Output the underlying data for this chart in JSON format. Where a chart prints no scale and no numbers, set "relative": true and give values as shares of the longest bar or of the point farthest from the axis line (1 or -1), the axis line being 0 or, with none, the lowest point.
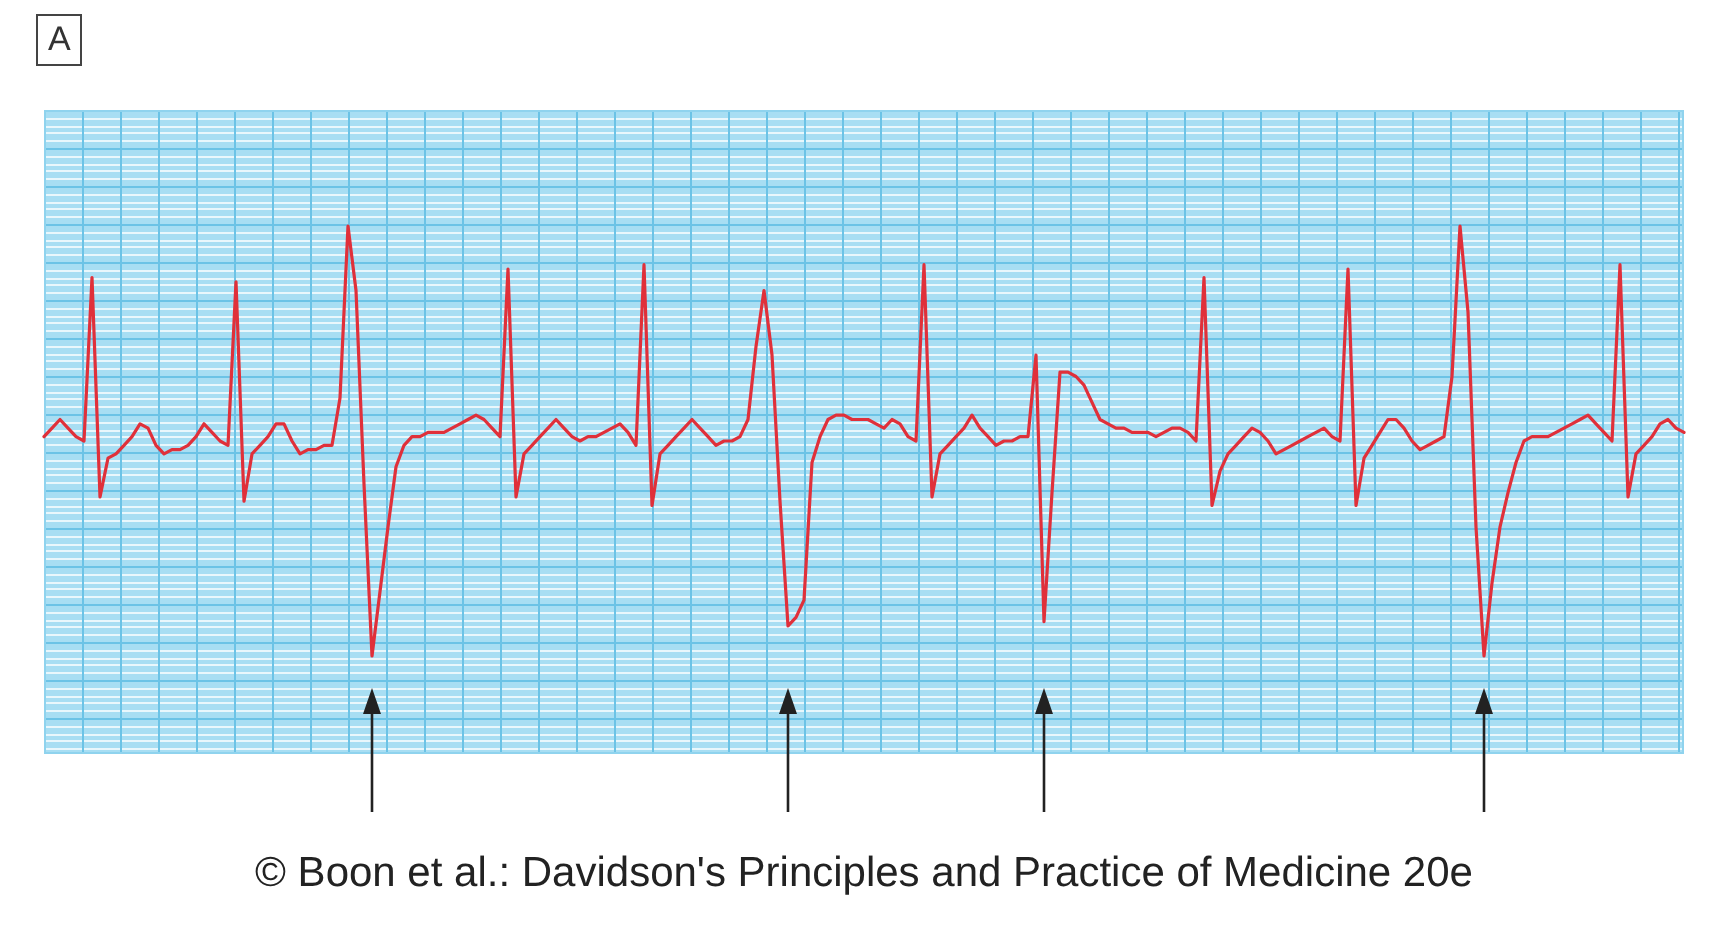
{
  "chart_data": {
    "type": "line",
    "title": "A",
    "annotations": [
      "© Boon et al.: Davidson's Principles and Practice of Medicine 20e"
    ],
    "relative": true,
    "grid": true,
    "marker": "none",
    "line_style": "solid",
    "categories": [
      null,
      null,
      null,
      null,
      null,
      null,
      null,
      null,
      null,
      null,
      null,
      null,
      null,
      null,
      null,
      null,
      null,
      null,
      null,
      null,
      null,
      null,
      null,
      null,
      null,
      null,
      null,
      null,
      null,
      null,
      null,
      null,
      null,
      null,
      null,
      null,
      null,
      null,
      null,
      null,
      null,
      null,
      null,
      null,
      null,
      null,
      null,
      null,
      null,
      null,
      null,
      null,
      null,
      null,
      null,
      null,
      null,
      null,
      null,
      null,
      null,
      null,
      null,
      null,
      null,
      null,
      null,
      null,
      null,
      null,
      null,
      null,
      null,
      null,
      null,
      null,
      null,
      null,
      null,
      null,
      null,
      null,
      null,
      null,
      null,
      null,
      null,
      null,
      null,
      null,
      null,
      null,
      null,
      null,
      null,
      null,
      null,
      null,
      null,
      null,
      null,
      null,
      null,
      null,
      null,
      null,
      null,
      null,
      null,
      null,
      null,
      null,
      null,
      null,
      null,
      null,
      null,
      null,
      null,
      null,
      null,
      null,
      null,
      null,
      null,
      null,
      null,
      null,
      null,
      null,
      null,
      null,
      null,
      null,
      null,
      null,
      null,
      null,
      null,
      null,
      null,
      null,
      null,
      null,
      null,
      null,
      null,
      null,
      null,
      null,
      null,
      null,
      null,
      null,
      null,
      null,
      null,
      null,
      null,
      null,
      null,
      null,
      null,
      null,
      null,
      null,
      null,
      null,
      null,
      null,
      null,
      null,
      null,
      null,
      null,
      null,
      null,
      null,
      null,
      null,
      null,
      null,
      null,
      null,
      null,
      null,
      null,
      null,
      null,
      null,
      null,
      null,
      null,
      null,
      null,
      null,
      null,
      null,
      null,
      null,
      null,
      null,
      null,
      null,
      null,
      null
    ],
    "series": [
      {
        "color": "#e0303a",
        "values": [
          0.51,
          0.53,
          0.55,
          0.53,
          0.51,
          0.5,
          0.88,
          0.37,
          0.46,
          0.47,
          0.49,
          0.51,
          0.54,
          0.53,
          0.49,
          0.47,
          0.48,
          0.48,
          0.49,
          0.51,
          0.54,
          0.52,
          0.5,
          0.49,
          0.87,
          0.36,
          0.47,
          0.49,
          0.51,
          0.54,
          0.54,
          0.5,
          0.47,
          0.48,
          0.48,
          0.49,
          0.49,
          0.6,
          1,
          0.85,
          0.4,
          0,
          0.15,
          0.3,
          0.44,
          0.49,
          0.51,
          0.51,
          0.52,
          0.52,
          0.52,
          0.53,
          0.54,
          0.55,
          0.56,
          0.55,
          0.53,
          0.51,
          0.9,
          0.37,
          0.47,
          0.49,
          0.51,
          0.53,
          0.55,
          0.53,
          0.51,
          0.5,
          0.51,
          0.51,
          0.52,
          0.53,
          0.54,
          0.52,
          0.49,
          0.91,
          0.35,
          0.47,
          0.49,
          0.51,
          0.53,
          0.55,
          0.53,
          0.51,
          0.49,
          0.5,
          0.5,
          0.51,
          0.55,
          0.72,
          0.85,
          0.7,
          0.36,
          0.07,
          0.09,
          0.13,
          0.45,
          0.51,
          0.55,
          0.56,
          0.56,
          0.55,
          0.55,
          0.55,
          0.54,
          0.53,
          0.55,
          0.54,
          0.51,
          0.5,
          0.91,
          0.37,
          0.47,
          0.49,
          0.51,
          0.53,
          0.56,
          0.53,
          0.51,
          0.49,
          0.5,
          0.5,
          0.51,
          0.51,
          0.7,
          0.08,
          0.38,
          0.66,
          0.66,
          0.65,
          0.63,
          0.59,
          0.55,
          0.54,
          0.53,
          0.53,
          0.52,
          0.52,
          0.52,
          0.51,
          0.52,
          0.53,
          0.53,
          0.52,
          0.5,
          0.88,
          0.35,
          0.43,
          0.47,
          0.49,
          0.51,
          0.53,
          0.52,
          0.5,
          0.47,
          0.48,
          0.49,
          0.5,
          0.51,
          0.52,
          0.53,
          0.51,
          0.5,
          0.9,
          0.35,
          0.46,
          0.49,
          0.52,
          0.55,
          0.55,
          0.53,
          0.5,
          0.48,
          0.49,
          0.5,
          0.51,
          0.65,
          1,
          0.8,
          0.3,
          0,
          0.17,
          0.3,
          0.38,
          0.45,
          0.5,
          0.51,
          0.51,
          0.51,
          0.52,
          0.53,
          0.54,
          0.55,
          0.56,
          0.54,
          0.52,
          0.5,
          0.91,
          0.37,
          0.47,
          0.49,
          0.51,
          0.54,
          0.55,
          0.53,
          0.52
        ]
      }
    ]
  }
}
